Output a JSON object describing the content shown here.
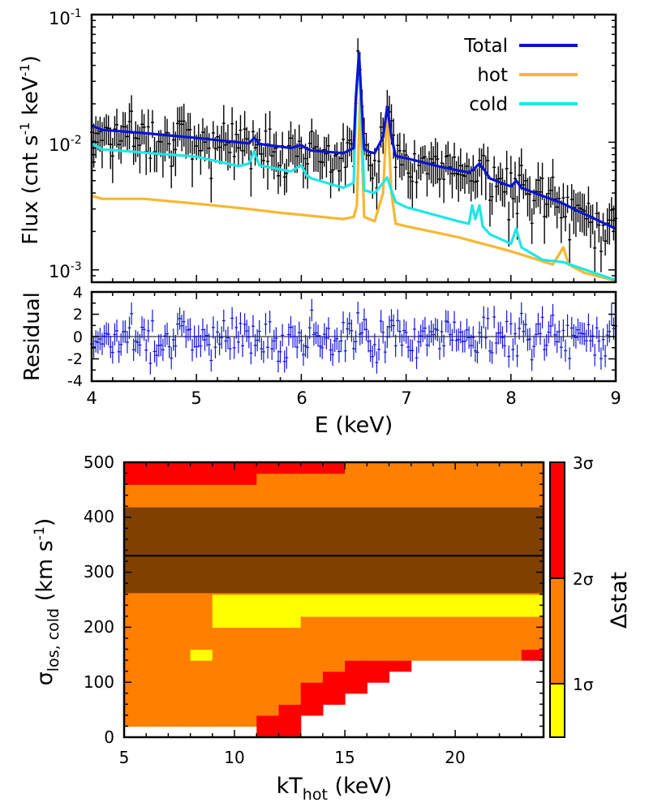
{
  "chart_data": [
    {
      "type": "line",
      "panel": "spectrum",
      "xlim": [
        4,
        9
      ],
      "ylim": [
        0.0008,
        0.1
      ],
      "yscale": "log",
      "ylabel_main": "Flux (cnt s",
      "ylabel_sup1": "-1",
      "ylabel_mid": " keV",
      "ylabel_sup2": "-1",
      "ylabel_end": ")",
      "ytick_base": "10",
      "yticks": [
        {
          "value": 0.1,
          "exp": "-1"
        },
        {
          "value": 0.01,
          "exp": "-2"
        },
        {
          "value": 0.001,
          "exp": "-3"
        }
      ],
      "legend_position": "top-right",
      "series": [
        {
          "name": "Total",
          "color": "#0a14d2",
          "x": [
            4.0,
            4.1,
            4.5,
            5.0,
            5.5,
            5.55,
            5.6,
            5.9,
            6.0,
            6.05,
            6.1,
            6.4,
            6.5,
            6.52,
            6.55,
            6.57,
            6.6,
            6.65,
            6.7,
            6.78,
            6.82,
            6.86,
            6.9,
            7.0,
            7.3,
            7.5,
            7.6,
            7.65,
            7.7,
            7.75,
            7.8,
            8.0,
            8.05,
            8.1,
            8.3,
            8.5,
            8.6,
            9.0
          ],
          "y": [
            0.0135,
            0.0125,
            0.0118,
            0.0108,
            0.0098,
            0.0108,
            0.0097,
            0.009,
            0.0095,
            0.0089,
            0.0086,
            0.0082,
            0.009,
            0.022,
            0.05,
            0.025,
            0.0088,
            0.0084,
            0.0082,
            0.011,
            0.019,
            0.011,
            0.0078,
            0.0075,
            0.0065,
            0.006,
            0.0058,
            0.0062,
            0.0068,
            0.006,
            0.0052,
            0.0045,
            0.005,
            0.0044,
            0.0038,
            0.0033,
            0.003,
            0.0021
          ]
        },
        {
          "name": "hot",
          "color": "#f7b733",
          "x": [
            4.0,
            4.1,
            4.5,
            5.0,
            5.5,
            5.8,
            6.0,
            6.4,
            6.5,
            6.53,
            6.56,
            6.6,
            6.7,
            6.78,
            6.82,
            6.86,
            6.9,
            7.0,
            7.5,
            8.0,
            8.4,
            8.5,
            8.55,
            8.7,
            9.0
          ],
          "y": [
            0.0038,
            0.0036,
            0.0036,
            0.0033,
            0.003,
            0.0028,
            0.0027,
            0.0025,
            0.0026,
            0.0032,
            0.022,
            0.0026,
            0.0024,
            0.004,
            0.019,
            0.004,
            0.0023,
            0.0022,
            0.0018,
            0.0014,
            0.0011,
            0.0015,
            0.0011,
            0.00095,
            0.00082
          ]
        },
        {
          "name": "cold",
          "color": "#1ee6e6",
          "x": [
            4.0,
            4.1,
            4.5,
            5.0,
            5.4,
            5.5,
            5.55,
            5.6,
            5.9,
            6.0,
            6.05,
            6.1,
            6.4,
            6.5,
            6.52,
            6.55,
            6.57,
            6.6,
            6.7,
            6.78,
            6.82,
            6.86,
            6.9,
            7.0,
            7.5,
            7.6,
            7.63,
            7.66,
            7.7,
            7.73,
            7.8,
            8.0,
            8.05,
            8.1,
            8.3,
            8.5,
            9.0
          ],
          "y": [
            0.0098,
            0.0088,
            0.0083,
            0.0077,
            0.0065,
            0.0068,
            0.0085,
            0.0066,
            0.0059,
            0.0066,
            0.0055,
            0.0052,
            0.0044,
            0.0048,
            0.02,
            0.048,
            0.02,
            0.0042,
            0.004,
            0.0048,
            0.0053,
            0.0042,
            0.0034,
            0.0031,
            0.0024,
            0.0023,
            0.0032,
            0.0025,
            0.0032,
            0.0022,
            0.0019,
            0.0016,
            0.0021,
            0.0015,
            0.0012,
            0.00115,
            0.00083
          ]
        }
      ],
      "observed_seed": 7
    },
    {
      "type": "scatter",
      "panel": "residual",
      "xlim": [
        4,
        9
      ],
      "ylim": [
        -4,
        4
      ],
      "ylabel": "Residual",
      "xlabel": "E (keV)",
      "xticks": [
        "4",
        "5",
        "6",
        "7",
        "8",
        "9"
      ],
      "yticks": [
        "4",
        "2",
        "0",
        "-2",
        "-4"
      ],
      "color": "#1414dc"
    },
    {
      "type": "heatmap",
      "panel": "confidence",
      "xlim": [
        5,
        24
      ],
      "ylim": [
        0,
        500
      ],
      "xlabel_main": "kT",
      "xlabel_sub": "hot",
      "xlabel_end": " (keV)",
      "ylabel_main": "σ",
      "ylabel_sub": "los, cold",
      "ylabel_end": " (km s",
      "ylabel_sup": "-1",
      "ylabel_close": ")",
      "xticks": [
        "5",
        "10",
        "15",
        "20"
      ],
      "yticks": [
        "0",
        "100",
        "200",
        "300",
        "400",
        "500"
      ],
      "best_fit_sigma": 330,
      "colors": {
        "1": "#ffff00",
        "2": "#ff8000",
        "3": "#ff0000"
      },
      "shading_band": [
        262,
        418
      ],
      "cells": [
        [
          0,
          500,
          500,
          500,
          500,
          500,
          500,
          500,
          500,
          500,
          500,
          500,
          500,
          500,
          500,
          500,
          500,
          500,
          500
        ],
        [
          0,
          20,
          20,
          20,
          20,
          20,
          20,
          20,
          20,
          20,
          20,
          20,
          20,
          20,
          20,
          20,
          20,
          20,
          20
        ],
        [
          20,
          20,
          20,
          20,
          20,
          20,
          20,
          20,
          20,
          20,
          20,
          20,
          20,
          20,
          20,
          20,
          20,
          20,
          20
        ],
        [
          30,
          40,
          40,
          45,
          50,
          50,
          50,
          50,
          50,
          50,
          50,
          50,
          50,
          50,
          50,
          50,
          50,
          50,
          50
        ],
        [
          40,
          40,
          40,
          40,
          40,
          40,
          40,
          40,
          40,
          40,
          40,
          40,
          40,
          40,
          40,
          40,
          40,
          40,
          40
        ],
        [
          70,
          50,
          50,
          50,
          50,
          50,
          50,
          50,
          50,
          50,
          50,
          50,
          50,
          50,
          50,
          50,
          50,
          50,
          50
        ],
        [
          70,
          70,
          70,
          70,
          70,
          70,
          70,
          70,
          70,
          70,
          70,
          70,
          70,
          70,
          70,
          70,
          70,
          70,
          70
        ],
        [
          70,
          70,
          70,
          70,
          70,
          70,
          70,
          70,
          70,
          70,
          70,
          70,
          70,
          70,
          70,
          70,
          70,
          70,
          70
        ]
      ],
      "colorbar": {
        "label": "Δstat",
        "levels": [
          {
            "label": "1σ",
            "color": "#ffff00"
          },
          {
            "label": "2σ",
            "color": "#ff8000"
          },
          {
            "label": "3σ",
            "color": "#ff0000"
          }
        ]
      }
    }
  ]
}
